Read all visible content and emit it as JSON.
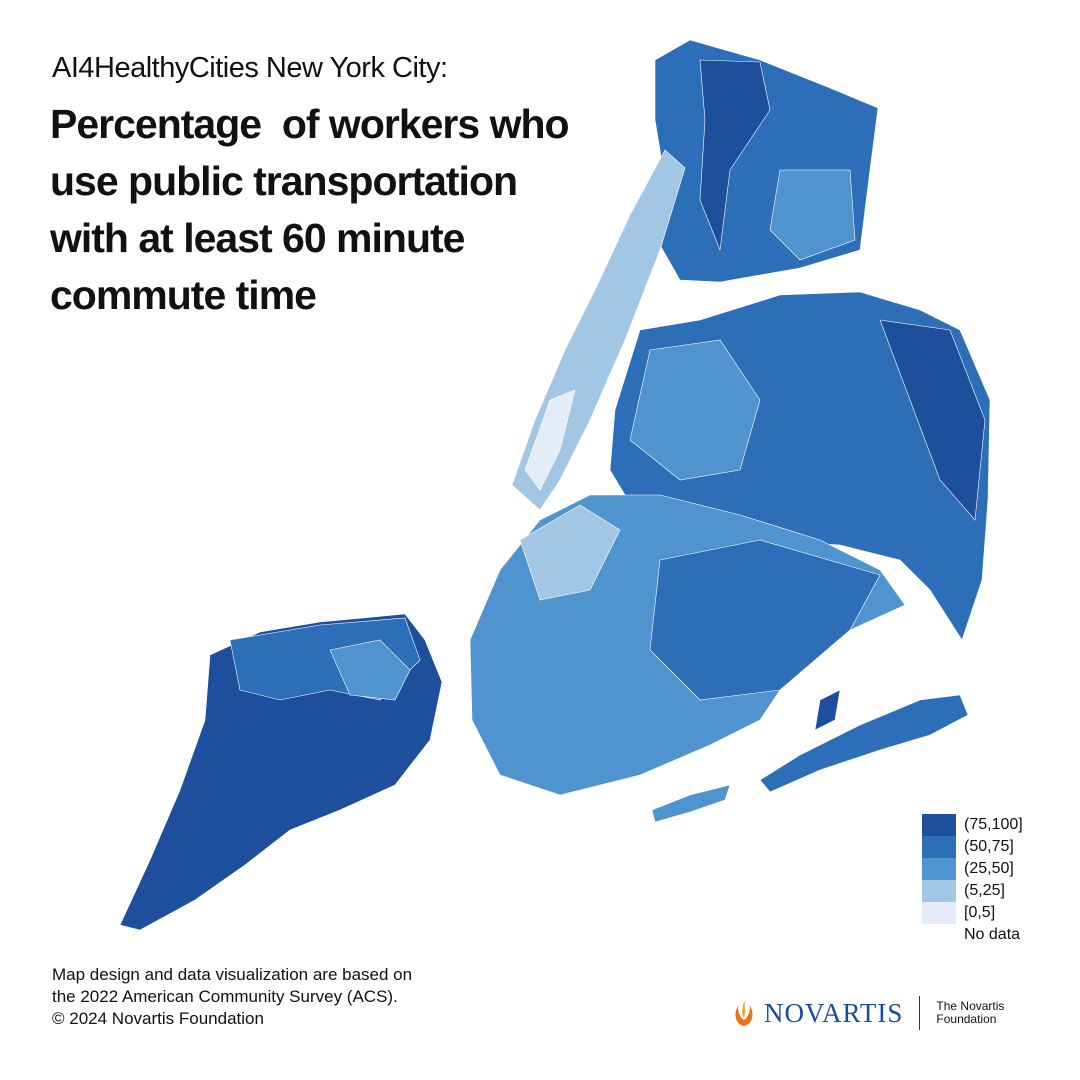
{
  "header": {
    "kicker": "AI4HealthyCities New York City:",
    "title": [
      "Percentage  of workers who",
      "use public transportation",
      "with at least 60 minute",
      "commute time"
    ]
  },
  "legend": [
    {
      "label": "(75,100]",
      "color": "#1e4f9c"
    },
    {
      "label": "(50,75]",
      "color": "#2c6fb8"
    },
    {
      "label": "(25,50]",
      "color": "#4f93cf"
    },
    {
      "label": "(5,25]",
      "color": "#a3c6e4"
    },
    {
      "label": "[0,5]",
      "color": "#e4ecf7"
    },
    {
      "label": "No data"
    }
  ],
  "footer": {
    "source": [
      "Map design and data visualization are based on",
      "the 2022 American Community Survey (ACS).",
      "© 2024 Novartis Foundation"
    ]
  },
  "logo": {
    "brand": "NOVARTIS",
    "foundation": [
      "The Novartis",
      "Foundation"
    ]
  }
}
